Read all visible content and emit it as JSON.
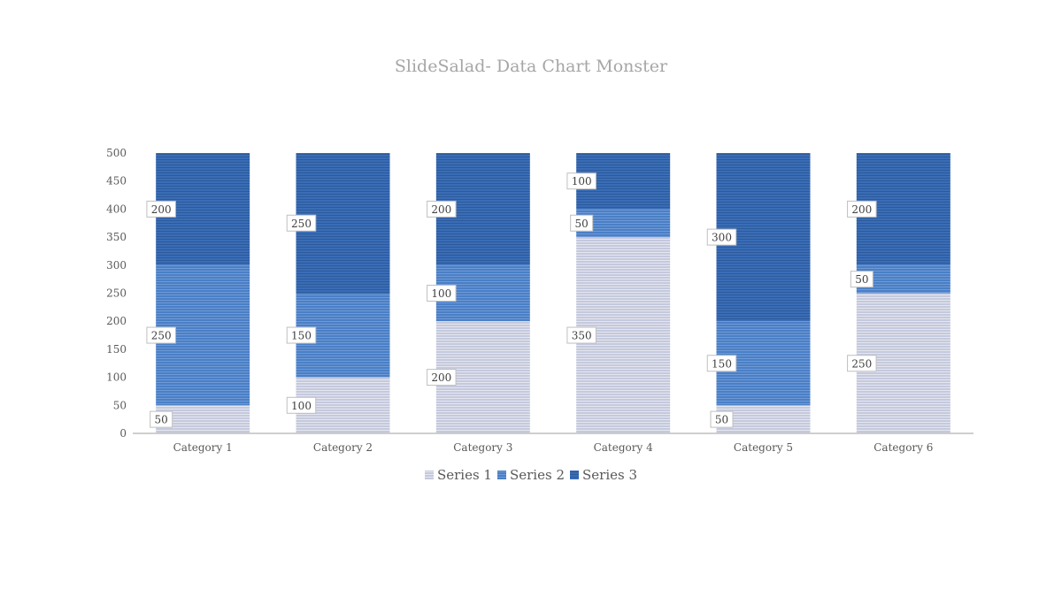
{
  "chart_data": {
    "type": "bar",
    "stacked": true,
    "title": "SlideSalad- Data Chart Monster",
    "categories": [
      "Category 1",
      "Category 2",
      "Category 3",
      "Category 4",
      "Category 5",
      "Category 6"
    ],
    "series": [
      {
        "name": "Series 1",
        "values": [
          50,
          100,
          200,
          350,
          50,
          250
        ],
        "color": "#c5c9dd"
      },
      {
        "name": "Series 2",
        "values": [
          250,
          150,
          100,
          50,
          150,
          50
        ],
        "color": "#4a7fc6"
      },
      {
        "name": "Series 3",
        "values": [
          200,
          250,
          200,
          100,
          300,
          200
        ],
        "color": "#3a6db6"
      }
    ],
    "ylim": [
      0,
      500
    ],
    "yticks": [
      0,
      50,
      100,
      150,
      200,
      250,
      300,
      350,
      400,
      450,
      500
    ],
    "legend_position": "bottom",
    "grid": false
  }
}
